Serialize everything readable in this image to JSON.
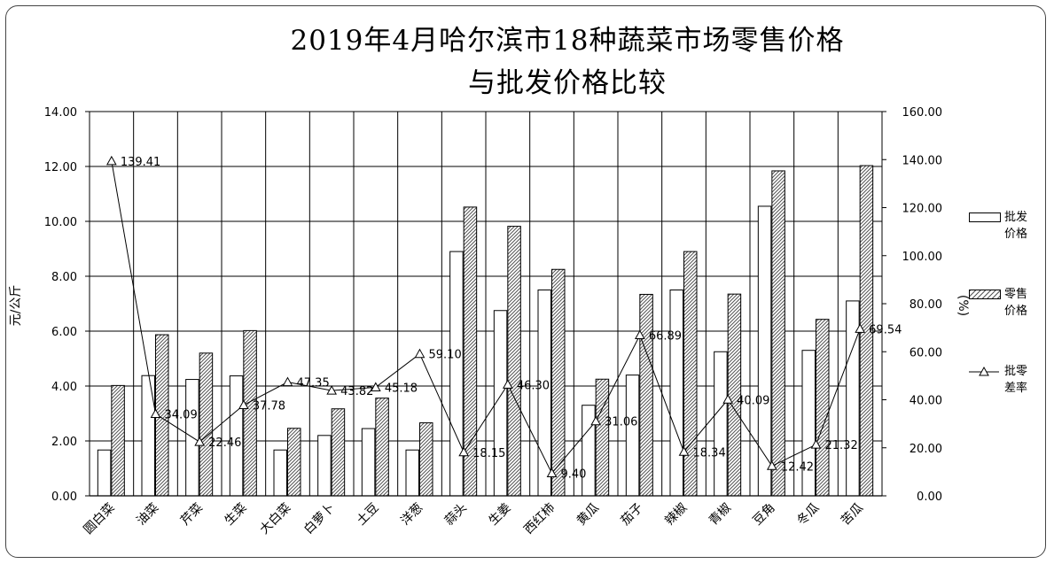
{
  "title_line1": "2019年4月哈尔滨市18种蔬菜市场零售价格",
  "title_line2": "与批发价格比较",
  "chart_data": {
    "type": "bar",
    "categories": [
      "圆白菜",
      "油菜",
      "芹菜",
      "生菜",
      "大白菜",
      "白萝卜",
      "土豆",
      "洋葱",
      "蒜头",
      "生姜",
      "西红柿",
      "黄瓜",
      "茄子",
      "辣椒",
      "青椒",
      "豆角",
      "冬瓜",
      "苦瓜"
    ],
    "series": [
      {
        "name": "批发价格",
        "kind": "bar",
        "axis": "left",
        "fill": "white",
        "values": [
          1.67,
          4.38,
          4.24,
          4.37,
          1.67,
          2.2,
          2.45,
          1.67,
          8.9,
          6.75,
          7.5,
          3.3,
          4.4,
          7.5,
          5.25,
          10.55,
          5.3,
          7.1
        ]
      },
      {
        "name": "零售价格",
        "kind": "bar",
        "axis": "left",
        "fill": "hatched",
        "values": [
          4.02,
          5.87,
          5.2,
          6.02,
          2.46,
          3.17,
          3.56,
          2.66,
          10.52,
          9.82,
          8.25,
          4.25,
          7.34,
          8.9,
          7.35,
          11.84,
          6.43,
          12.03
        ]
      },
      {
        "name": "批零差率",
        "kind": "line",
        "axis": "right",
        "marker": "triangle",
        "values": [
          139.41,
          34.09,
          22.46,
          37.78,
          47.35,
          43.82,
          45.18,
          59.1,
          18.15,
          46.3,
          9.4,
          31.06,
          66.89,
          18.34,
          40.09,
          12.42,
          21.32,
          69.54
        ],
        "labels": [
          "139.41",
          "34.09",
          "22.46",
          "37.78",
          "47.35",
          "43.82",
          "45.18",
          "59.10",
          "18.15",
          "46.30",
          "9.40",
          "31.06",
          "66.89",
          "18.34",
          "40.09",
          "12.42",
          "21.32",
          "69.54"
        ]
      }
    ],
    "ylabel": "元/公斤",
    "y2label": "(%)",
    "ylim": [
      0,
      14
    ],
    "y2lim": [
      0,
      160
    ],
    "yticks": [
      "0.00",
      "2.00",
      "4.00",
      "6.00",
      "8.00",
      "10.00",
      "12.00",
      "14.00"
    ],
    "y2ticks": [
      "0.00",
      "20.00",
      "40.00",
      "60.00",
      "80.00",
      "100.00",
      "120.00",
      "140.00",
      "160.00"
    ],
    "grid": true,
    "legend_position": "right"
  },
  "legend": [
    {
      "line1": "批发",
      "line2": "价格"
    },
    {
      "line1": "零售",
      "line2": "价格"
    },
    {
      "line1": "批零",
      "line2": "差率"
    }
  ]
}
